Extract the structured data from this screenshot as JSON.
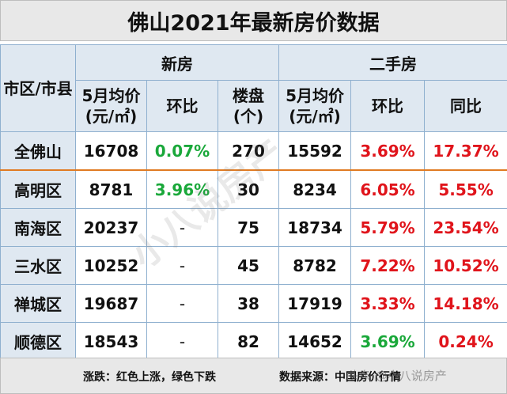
{
  "title": "佛山2021年最新房价数据",
  "headers": {
    "district": "市区/市县",
    "new": "新房",
    "second": "二手房",
    "new_price": "5月均价(元/㎡)",
    "new_mom": "环比",
    "new_projects": "楼盘(个)",
    "second_price": "5月均价(元/㎡)",
    "second_mom": "环比",
    "second_yoy": "同比"
  },
  "rows": [
    {
      "name": "全佛山",
      "new_price": "16708",
      "new_mom": "0.07%",
      "new_mom_color": "green",
      "projects": "270",
      "second_price": "15592",
      "second_mom": "3.69%",
      "second_mom_color": "red",
      "second_yoy": "17.37%",
      "second_yoy_color": "red"
    },
    {
      "name": "高明区",
      "new_price": "8781",
      "new_mom": "3.96%",
      "new_mom_color": "green",
      "projects": "30",
      "second_price": "8234",
      "second_mom": "6.05%",
      "second_mom_color": "red",
      "second_yoy": "5.55%",
      "second_yoy_color": "red"
    },
    {
      "name": "南海区",
      "new_price": "20237",
      "new_mom": "-",
      "new_mom_color": "none",
      "projects": "75",
      "second_price": "18734",
      "second_mom": "5.79%",
      "second_mom_color": "red",
      "second_yoy": "23.54%",
      "second_yoy_color": "red"
    },
    {
      "name": "三水区",
      "new_price": "10252",
      "new_mom": "-",
      "new_mom_color": "none",
      "projects": "45",
      "second_price": "8782",
      "second_mom": "7.22%",
      "second_mom_color": "red",
      "second_yoy": "10.52%",
      "second_yoy_color": "red"
    },
    {
      "name": "禅城区",
      "new_price": "19687",
      "new_mom": "-",
      "new_mom_color": "none",
      "projects": "38",
      "second_price": "17919",
      "second_mom": "3.33%",
      "second_mom_color": "red",
      "second_yoy": "14.18%",
      "second_yoy_color": "red"
    },
    {
      "name": "顺德区",
      "new_price": "18543",
      "new_mom": "-",
      "new_mom_color": "none",
      "projects": "82",
      "second_price": "14652",
      "second_mom": "3.69%",
      "second_mom_color": "green",
      "second_yoy": "0.24%",
      "second_yoy_color": "red"
    }
  ],
  "footer": {
    "legend": "涨跌：红色上涨，绿色下跌",
    "source": "数据来源：中国房价行情"
  },
  "watermark": "小八说房产",
  "watermark_corner": "头条 @小八说房产",
  "colors": {
    "red": "#e0141b",
    "green": "#1aa83a",
    "header_bg": "#dfe8f1"
  }
}
